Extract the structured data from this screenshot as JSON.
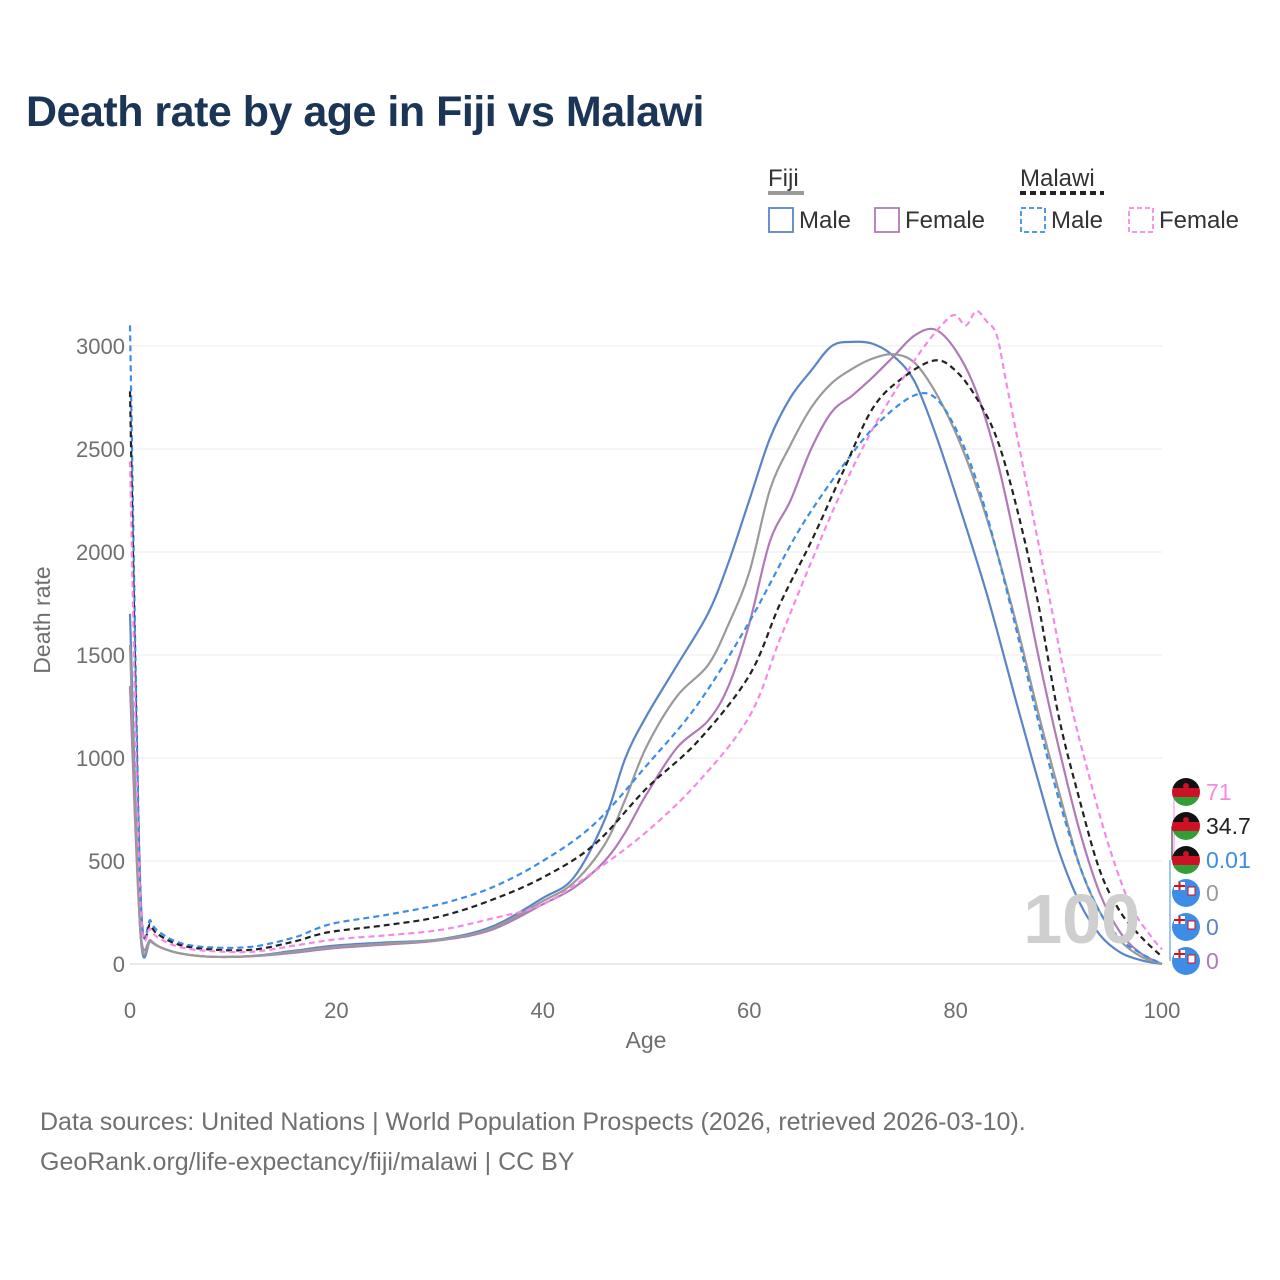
{
  "title": "Death rate by age in Fiji vs Malawi",
  "sources": {
    "line1": "Data sources: United Nations | World Population Prospects (2026, retrieved 2026-03-10).",
    "line2": "GeoRank.org/life-expectancy/fiji/malawi | CC BY"
  },
  "legend": {
    "groups": [
      {
        "label": "Fiji",
        "swatch_color": "#9a9a9a",
        "dashed": false
      },
      {
        "label": "Malawi",
        "swatch_color": "#222222",
        "dashed": true
      }
    ],
    "entries": [
      {
        "label": "Male",
        "color": "#5b84c8",
        "dashed": false
      },
      {
        "label": "Female",
        "color": "#b07ab6",
        "dashed": false
      },
      {
        "label": "Male",
        "color": "#3d8ce6",
        "dashed": true
      },
      {
        "label": "Female",
        "color": "#f58ae6",
        "dashed": true
      }
    ]
  },
  "watermark": "100",
  "end_labels": [
    {
      "text": "71",
      "color": "#f58ae6",
      "flag": "malawi-flag"
    },
    {
      "text": "34.7",
      "color": "#222222",
      "flag": "malawi-flag"
    },
    {
      "text": "0.01",
      "color": "#3d8ce6",
      "flag": "malawi-flag"
    },
    {
      "text": "0",
      "color": "#9a9a9a",
      "flag": "fiji-flag"
    },
    {
      "text": "0",
      "color": "#5b84c8",
      "flag": "fiji-flag"
    },
    {
      "text": "0",
      "color": "#b07ab6",
      "flag": "fiji-flag"
    }
  ],
  "chart_data": {
    "type": "line",
    "title": "Death rate by age in Fiji vs Malawi",
    "xlabel": "Age",
    "ylabel": "Death rate",
    "xlim": [
      0,
      100
    ],
    "ylim": [
      0,
      3000
    ],
    "xticks": [
      0,
      20,
      40,
      60,
      80,
      100
    ],
    "yticks": [
      0,
      500,
      1000,
      1500,
      2000,
      2500,
      3000
    ],
    "grid": true,
    "series": [
      {
        "name": "Fiji Male",
        "color": "#5b84c8",
        "dashed": false,
        "x": [
          0,
          1,
          2,
          3,
          5,
          8,
          12,
          16,
          20,
          25,
          30,
          35,
          40,
          43,
          46,
          48,
          50,
          53,
          56,
          58,
          60,
          62,
          64,
          66,
          68,
          70,
          72,
          74,
          76,
          78,
          80,
          83,
          86,
          88,
          90,
          92,
          94,
          96,
          98,
          100
        ],
        "y": [
          1700,
          160,
          110,
          80,
          50,
          35,
          40,
          65,
          90,
          105,
          120,
          180,
          320,
          420,
          700,
          1000,
          1200,
          1450,
          1700,
          1950,
          2250,
          2550,
          2750,
          2880,
          3000,
          3020,
          3010,
          2950,
          2830,
          2580,
          2280,
          1800,
          1250,
          890,
          550,
          300,
          140,
          55,
          18,
          0
        ]
      },
      {
        "name": "Fiji Female",
        "color": "#b07ab6",
        "dashed": false,
        "x": [
          0,
          1,
          2,
          3,
          5,
          8,
          12,
          16,
          20,
          25,
          30,
          35,
          40,
          43,
          46,
          48,
          50,
          53,
          56,
          58,
          60,
          62,
          64,
          66,
          68,
          70,
          72,
          74,
          76,
          78,
          80,
          82,
          84,
          86,
          88,
          90,
          92,
          94,
          96,
          98,
          100
        ],
        "y": [
          1350,
          170,
          115,
          80,
          50,
          35,
          38,
          55,
          78,
          95,
          115,
          165,
          290,
          370,
          500,
          640,
          820,
          1050,
          1180,
          1350,
          1650,
          2050,
          2250,
          2500,
          2680,
          2760,
          2850,
          2950,
          3050,
          3080,
          2980,
          2780,
          2450,
          2000,
          1500,
          1050,
          650,
          340,
          150,
          50,
          0
        ]
      },
      {
        "name": "Fiji both",
        "color": "#9a9a9a",
        "dashed": false,
        "x": [
          0,
          1,
          2,
          3,
          5,
          8,
          12,
          16,
          20,
          25,
          30,
          35,
          40,
          43,
          46,
          48,
          50,
          53,
          56,
          58,
          60,
          62,
          64,
          66,
          68,
          70,
          72,
          74,
          76,
          78,
          80,
          82,
          84,
          86,
          88,
          90,
          92,
          94,
          96,
          98,
          100
        ],
        "y": [
          1550,
          165,
          112,
          80,
          50,
          35,
          39,
          60,
          84,
          100,
          118,
          172,
          305,
          395,
          580,
          800,
          1050,
          1300,
          1450,
          1650,
          1900,
          2300,
          2520,
          2700,
          2820,
          2890,
          2940,
          2960,
          2920,
          2780,
          2580,
          2320,
          2000,
          1630,
          1220,
          840,
          480,
          250,
          110,
          35,
          0
        ]
      },
      {
        "name": "Malawi Male",
        "color": "#3d8ce6",
        "dashed": true,
        "x": [
          0,
          1,
          2,
          3,
          5,
          8,
          12,
          16,
          18,
          20,
          25,
          30,
          35,
          40,
          45,
          50,
          55,
          60,
          65,
          70,
          73,
          76,
          78,
          80,
          82,
          84,
          86,
          88,
          90,
          92,
          94,
          96,
          98,
          100
        ],
        "y": [
          3100,
          380,
          210,
          150,
          100,
          80,
          85,
          130,
          170,
          200,
          240,
          290,
          370,
          500,
          680,
          960,
          1260,
          1660,
          2120,
          2480,
          2650,
          2760,
          2750,
          2600,
          2350,
          2000,
          1600,
          1180,
          800,
          480,
          250,
          120,
          50,
          0
        ]
      },
      {
        "name": "Malawi both",
        "color": "#222222",
        "dashed": true,
        "x": [
          0,
          1,
          2,
          3,
          5,
          8,
          12,
          16,
          18,
          20,
          25,
          30,
          35,
          40,
          45,
          50,
          55,
          60,
          63,
          66,
          69,
          72,
          75,
          78,
          80,
          82,
          84,
          86,
          88,
          90,
          92,
          94,
          96,
          98,
          100
        ],
        "y": [
          2780,
          350,
          190,
          135,
          90,
          70,
          70,
          110,
          140,
          160,
          190,
          230,
          310,
          420,
          580,
          850,
          1080,
          1400,
          1750,
          2050,
          2380,
          2700,
          2850,
          2930,
          2880,
          2750,
          2550,
          2200,
          1750,
          1200,
          800,
          450,
          250,
          130,
          35
        ]
      },
      {
        "name": "Malawi Female",
        "color": "#f58ae6",
        "dashed": true,
        "x": [
          0,
          1,
          2,
          3,
          5,
          8,
          12,
          16,
          20,
          25,
          30,
          35,
          40,
          45,
          50,
          55,
          60,
          63,
          66,
          69,
          72,
          75,
          77,
          79,
          80,
          81,
          82,
          83,
          84,
          85,
          87,
          89,
          91,
          93,
          95,
          97,
          99,
          100
        ],
        "y": [
          2440,
          320,
          170,
          120,
          80,
          62,
          60,
          90,
          120,
          140,
          165,
          220,
          290,
          450,
          640,
          880,
          1200,
          1580,
          1950,
          2300,
          2600,
          2850,
          3000,
          3120,
          3150,
          3100,
          3170,
          3120,
          3050,
          2800,
          2300,
          1800,
          1300,
          900,
          550,
          280,
          130,
          71
        ]
      }
    ]
  }
}
